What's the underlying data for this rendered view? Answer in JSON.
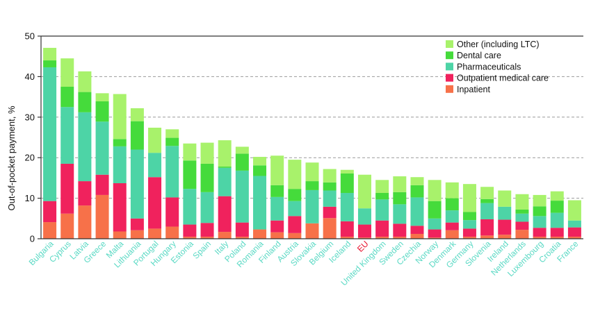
{
  "colors": {
    "Other (including LTC)": "#a8f26b",
    "Dental care": "#45db3b",
    "Pharmaceuticals": "#4dd4a6",
    "Outpatient medical care": "#f0225d",
    "Inpatient": "#f77149",
    "category_label": "#59d9c4",
    "highlight_label": "#e8112d",
    "frame": "#333333",
    "grid": "#999999"
  },
  "chart_data": {
    "type": "bar",
    "stacked": true,
    "ylabel": "Out-of-pocket payment, %",
    "ylim": [
      0,
      50
    ],
    "yticks": [
      0,
      10,
      20,
      30,
      40,
      50
    ],
    "grid": "horizontal dashed",
    "legend_position": "top-right",
    "highlight_category": "EU",
    "categories": [
      "Bulgaria",
      "Cyprus",
      "Latvia",
      "Greece",
      "Malta",
      "Lithuania",
      "Portugal",
      "Hungary",
      "Estonia",
      "Spain",
      "Italy",
      "Poland",
      "Romania",
      "Finland",
      "Austria",
      "Slovakia",
      "Belgium",
      "Iceland",
      "EU",
      "United Kingdom",
      "Sweden",
      "Czechia",
      "Norway",
      "Denmark",
      "Germany",
      "Slovenia",
      "Ireland",
      "Netherlands",
      "Luxembourg",
      "Croatia",
      "France"
    ],
    "series": [
      {
        "name": "Inpatient",
        "values": [
          4.1,
          6.2,
          8.2,
          10.8,
          1.8,
          2.1,
          2.5,
          3.0,
          0.5,
          0.5,
          1.7,
          0.5,
          2.3,
          1.6,
          1.4,
          3.8,
          5.1,
          0.5,
          0.3,
          0.5,
          0.5,
          1.2,
          0.3,
          2.1,
          0.5,
          0.8,
          1.0,
          2.2,
          0.5,
          0.5,
          0.5
        ]
      },
      {
        "name": "Outpatient medical care",
        "values": [
          5.2,
          12.3,
          6.0,
          5.0,
          11.9,
          2.9,
          12.7,
          7.2,
          3.0,
          3.4,
          8.8,
          3.5,
          0.0,
          2.9,
          4.2,
          0.0,
          2.8,
          3.8,
          3.2,
          4.0,
          3.2,
          2.0,
          2.0,
          1.9,
          2.0,
          4.0,
          3.7,
          2.0,
          2.2,
          2.2,
          2.3
        ]
      },
      {
        "name": "Pharmaceuticals",
        "values": [
          33.0,
          14.0,
          17.0,
          13.1,
          9.1,
          17.0,
          6.0,
          12.7,
          8.8,
          7.6,
          7.0,
          12.8,
          13.2,
          5.8,
          3.7,
          8.2,
          4.0,
          7.0,
          4.0,
          5.2,
          4.8,
          7.0,
          2.7,
          3.0,
          2.1,
          4.0,
          3.2,
          2.0,
          2.9,
          3.7,
          1.7
        ]
      },
      {
        "name": "Dental care",
        "values": [
          1.7,
          5.0,
          5.0,
          5.0,
          1.8,
          7.0,
          0.0,
          2.0,
          7.0,
          7.0,
          0.3,
          4.2,
          2.6,
          2.9,
          3.0,
          2.2,
          2.0,
          4.8,
          0.0,
          1.6,
          3.0,
          3.0,
          4.3,
          3.0,
          2.0,
          1.0,
          0.0,
          1.0,
          2.4,
          3.0,
          0.0
        ]
      },
      {
        "name": "Other (including LTC)",
        "values": [
          3.1,
          7.0,
          5.1,
          2.0,
          11.1,
          3.2,
          6.2,
          2.1,
          4.2,
          5.2,
          6.5,
          1.7,
          2.1,
          7.3,
          7.2,
          4.6,
          3.3,
          0.9,
          8.3,
          3.2,
          3.9,
          2.0,
          5.2,
          3.9,
          6.9,
          3.0,
          4.0,
          3.8,
          2.8,
          2.3,
          5.0
        ]
      }
    ]
  }
}
